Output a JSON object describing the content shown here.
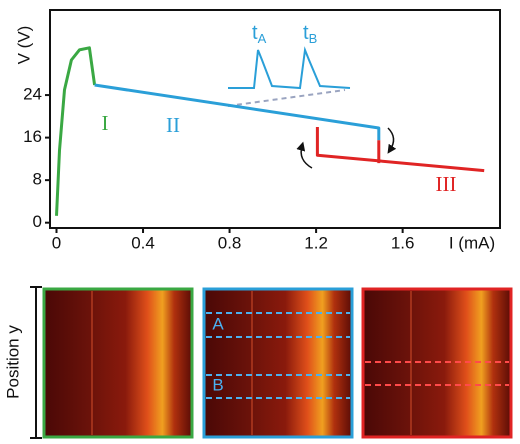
{
  "chart_data": {
    "type": "line",
    "x_label": "I (mA)",
    "y_label": "V (V)",
    "xlim": [
      -0.03,
      2.05
    ],
    "ylim": [
      -1,
      40
    ],
    "xticks": [
      0,
      0.4,
      0.8,
      1.2,
      1.6
    ],
    "yticks": [
      0,
      8,
      16,
      24
    ],
    "series": [
      {
        "name": "I",
        "color": "#3aa843",
        "x": [
          0,
          0.014,
          0.037,
          0.069,
          0.106,
          0.152,
          0.176
        ],
        "values": [
          1.3,
          13.6,
          25,
          30.6,
          32.5,
          32.9,
          25.9
        ]
      },
      {
        "name": "II",
        "color": "#2a9fd8",
        "x": [
          0.176,
          1.49,
          1.49
        ],
        "values": [
          25.9,
          17.8,
          15.5
        ]
      },
      {
        "name": "III",
        "color": "#e02424",
        "x": [
          1.206,
          1.206,
          1.977,
          null,
          1.49,
          1.49
        ],
        "values": [
          18,
          12.7,
          9.8,
          null,
          15.5,
          11.2
        ]
      }
    ],
    "inset_labels": [
      {
        "symbol": "t",
        "sub": "A"
      },
      {
        "symbol": "t",
        "sub": "B"
      }
    ]
  },
  "images": {
    "y_label": "Position y",
    "line_labels": [
      "A",
      "B"
    ]
  }
}
